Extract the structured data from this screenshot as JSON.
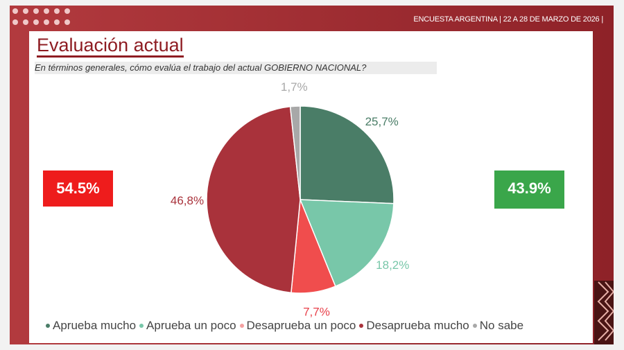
{
  "header": "ENCUESTA ARGENTINA | 22 A 28 DE MARZO DE 2026 |",
  "title": "Evaluación actual",
  "question": "En términos generales, cómo evalúa el trabajo del actual GOBIERNO NACIONAL?",
  "disapprove_total": "54.5%",
  "approve_total": "43.9%",
  "colors": {
    "disapprove_box": "#ee1c1c",
    "approve_box": "#3aa64a",
    "frame": "#9e2c31"
  },
  "chart_data": {
    "type": "pie",
    "categories": [
      "Aprueba mucho",
      "Aprueba un poco",
      "Desaprueba un poco",
      "Desaprueba mucho",
      "No sabe"
    ],
    "values": [
      25.7,
      18.2,
      7.7,
      46.8,
      1.7
    ],
    "labels": [
      "25,7%",
      "18,2%",
      "7,7%",
      "46,8%",
      "1,7%"
    ],
    "colors": [
      "#4a7d67",
      "#78c7a9",
      "#f04d4d",
      "#a9323b",
      "#a8a8a8"
    ],
    "legend": "bottom"
  }
}
